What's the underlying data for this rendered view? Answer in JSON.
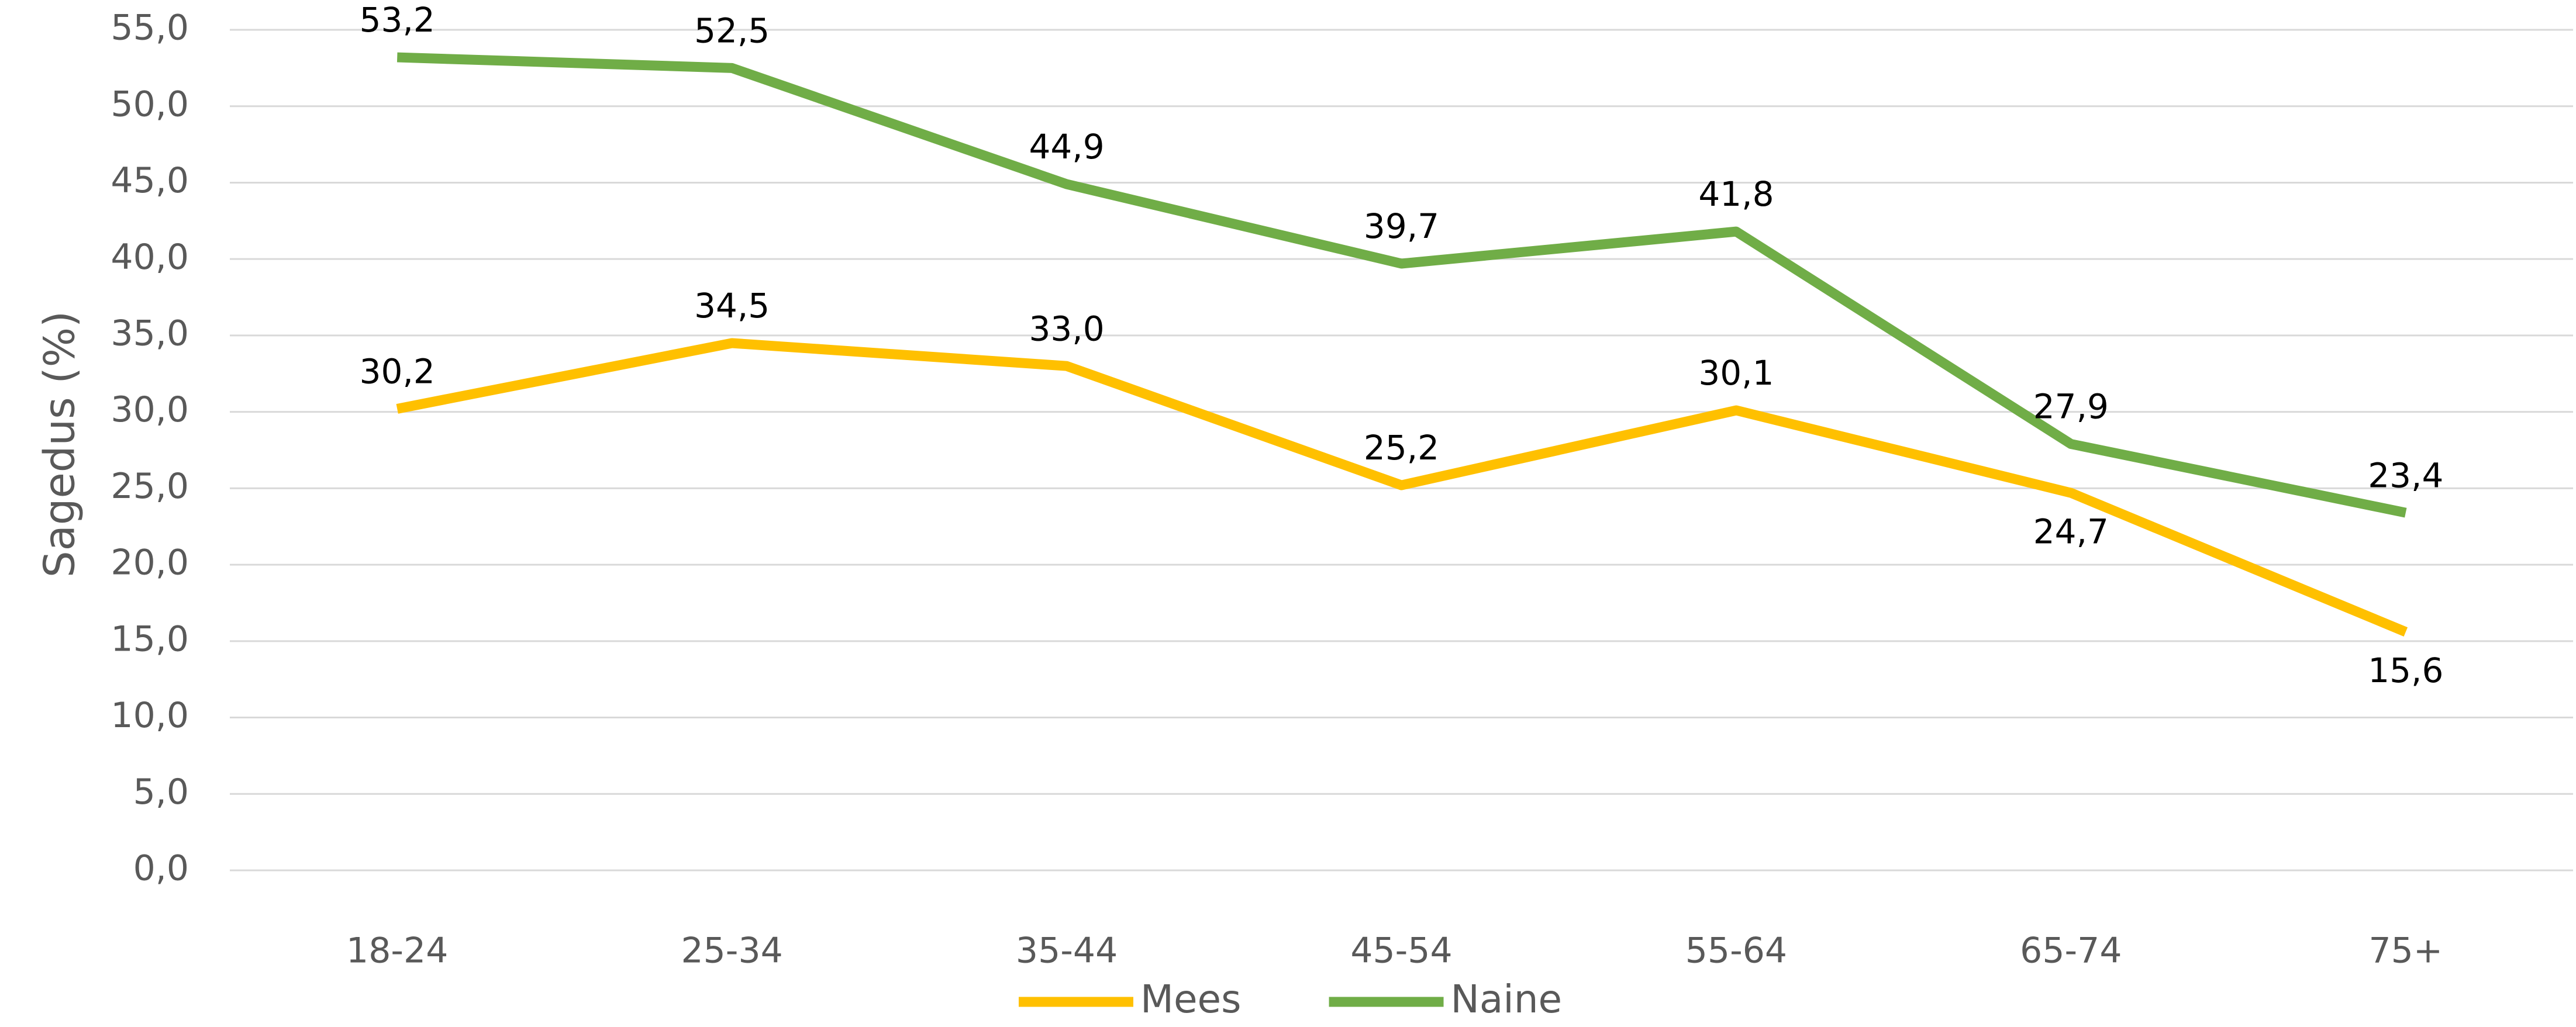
{
  "chart_data": {
    "type": "line",
    "ylabel": "Sagedus (%)",
    "categories": [
      "18-24",
      "25-34",
      "35-44",
      "45-54",
      "55-64",
      "65-74",
      "75+"
    ],
    "series": [
      {
        "name": "Mees",
        "color": "#ffc000",
        "values": [
          30.2,
          34.5,
          33.0,
          25.2,
          30.1,
          24.7,
          15.6
        ],
        "value_labels": [
          "30,2",
          "34,5",
          "33,0",
          "25,2",
          "30,1",
          "24,7",
          "15,6"
        ]
      },
      {
        "name": "Naine",
        "color": "#70ad47",
        "values": [
          53.2,
          52.5,
          44.9,
          39.7,
          41.8,
          27.9,
          23.4
        ],
        "value_labels": [
          "53,2",
          "52,5",
          "44,9",
          "39,7",
          "41,8",
          "27,9",
          "23,4"
        ]
      }
    ],
    "ylim": [
      0,
      55
    ],
    "yticks": [
      {
        "value": 0,
        "label": "0,0"
      },
      {
        "value": 5,
        "label": "5,0"
      },
      {
        "value": 10,
        "label": "10,0"
      },
      {
        "value": 15,
        "label": "15,0"
      },
      {
        "value": 20,
        "label": "20,0"
      },
      {
        "value": 25,
        "label": "25,0"
      },
      {
        "value": 30,
        "label": "30,0"
      },
      {
        "value": 35,
        "label": "35,0"
      },
      {
        "value": 40,
        "label": "40,0"
      },
      {
        "value": 45,
        "label": "45,0"
      },
      {
        "value": 50,
        "label": "50,0"
      },
      {
        "value": 55,
        "label": "55,0"
      }
    ],
    "grid": true,
    "legend": "bottom"
  }
}
